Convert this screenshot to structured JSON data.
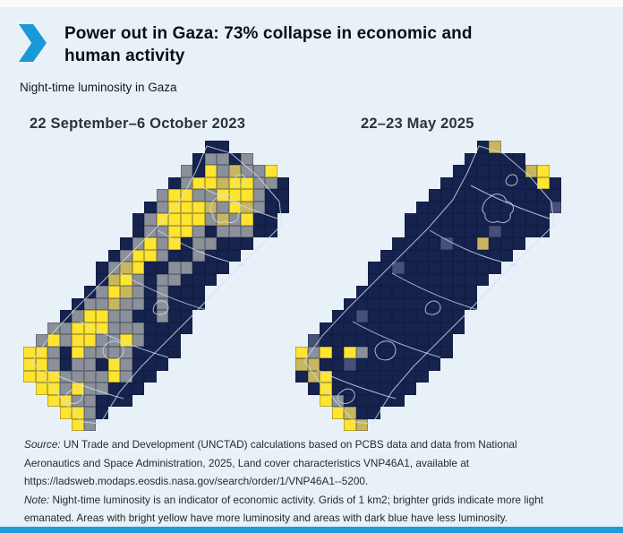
{
  "page": {
    "background": "#E9F1F8",
    "top_strip_color": "#F8FAFC",
    "bottom_bar_color": "#1F9BD7",
    "accent_blue": "#189AD7"
  },
  "header": {
    "chevron_icon": "right-chevron-arrow",
    "title_line1": "Power out in Gaza: 73% collapse in economic and",
    "title_line2": "human activity",
    "subtitle": "Night-time luminosity in Gaza"
  },
  "chart_data": {
    "type": "heatmap",
    "title": "Night-time luminosity in Gaza",
    "description": "Two gridded maps of the Gaza Strip comparing night-time light emissions; 1 km2 grid cells, bright yellow = more luminosity, dark blue = less luminosity, grey = intermediate.",
    "legend": {
      "high": {
        "label": "more luminosity (bright yellow)",
        "color": "#FFE430"
      },
      "mid": {
        "label": "intermediate luminosity (grey)",
        "color": "#8C9099"
      },
      "low": {
        "label": "less luminosity (dark blue)",
        "color": "#16234E"
      }
    },
    "cell_colors": {
      "n": "#16234E",
      "g": "#8C9099",
      "y": "#FFE430",
      "k": "#C8B75F",
      "d": "#46507A"
    },
    "grid_cell_km2": 1,
    "panels": [
      {
        "label": "22 September–6 October 2023",
        "grid": [
          "...............nn.....",
          "..............nggng...",
          ".............gnygkggy.",
          "............ngyykyyggn",
          "...........gyyggyyygnn",
          "..........ngyyykgykgnn",
          ".........ngyyyygkgynn.",
          ".........nggyygngggnn.",
          "........ngygynggnnn...",
          ".......ngyygnngnnn....",
          "......ngkynnggnnn.....",
          "......nkygnggnnn......",
          ".....ngykgngnnn.......",
          "....nggkggngnnn.......",
          "...ngyyggnngnn........",
          "..ggyyygggnnnn........",
          ".gygyyggygnnn.........",
          "yygnyggggnnnn.........",
          "yygnggnygnnn..........",
          "yyyggggygnn...........",
          ".yygyggnnn............",
          "..yyggnnn.............",
          "...yygn...............",
          "....yg................"
        ]
      },
      {
        "label": "22–23 May 2025",
        "grid": [
          "...............nk.....",
          "..............nnnnn...",
          ".............nnnnnnky.",
          "............nnnnnnnnyn",
          "...........nnnnnnnnnnn",
          "..........nnnnnnnnnnnd",
          ".........nnnnnnnnnnnn.",
          ".........nnnnnnndnnnn.",
          "........nnnndnnknnn...",
          ".......nnnnnnnnnnn....",
          "......nndnnnnnnnn.....",
          "......nnnnnnnnnn......",
          ".....nnnnnnnnnn.......",
          "....nnnnnnnnnnn.......",
          "...nndnnnnnnnn........",
          "..nnnnnnnnnnnn........",
          ".dnnnnnnnnnnn.........",
          "ygynygnnnnnnn.........",
          "kknndnnnnnnn..........",
          "nkynnnnnnnn...........",
          ".nynnnnnnn............",
          "..ygnnnnn.............",
          "...yknn...............",
          "....yk................"
        ]
      }
    ]
  },
  "footer": {
    "source_label": "Source:",
    "source_lines": [
      " UN Trade and Development (UNCTAD) calculations based on PCBS data and data from National",
      "Aeronautics and Space Administration, 2025, Land cover characteristics VNP46A1, available at",
      "https://ladsweb.modaps.eosdis.nasa.gov/search/order/1/VNP46A1--5200."
    ],
    "note_label": "Note:",
    "note_lines": [
      " Night-time luminosity is an indicator of economic activity. Grids of 1 km2; brighter grids indicate more light",
      "emanated. Areas with bright yellow have more luminosity and areas with dark blue have less luminosity."
    ]
  }
}
